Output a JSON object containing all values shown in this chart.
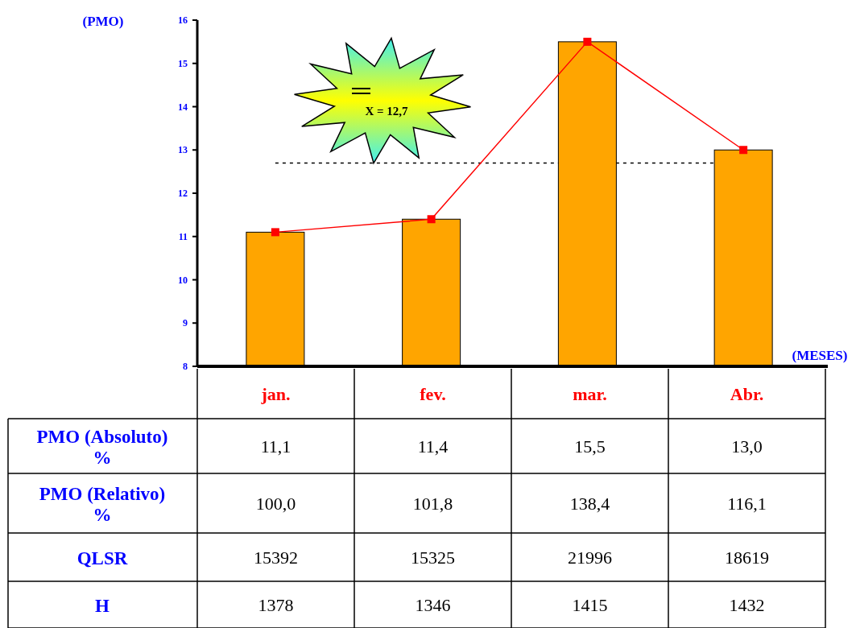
{
  "chart_data": {
    "type": "bar",
    "ylabel": "(PMO)",
    "xlabel": "(MESES)",
    "categories": [
      "jan.",
      "fev.",
      "mar.",
      "Abr."
    ],
    "ylim": [
      8,
      16
    ],
    "yticks": [
      8,
      9,
      10,
      11,
      12,
      13,
      14,
      15,
      16
    ],
    "series": [
      {
        "color": "#ffa500",
        "values": [
          11.1,
          11.4,
          15.5,
          13.0
        ],
        "value_labels": [
          "11,1",
          "11,4",
          "15,5",
          "13,0"
        ]
      },
      {
        "type": "line",
        "color": "#ff0000",
        "values": [
          11.1,
          11.4,
          15.5,
          13.0
        ],
        "marker": "square"
      }
    ],
    "ref_lines": [
      {
        "axis": "y",
        "value": 12.7,
        "color": "#000000",
        "line_style": "dashed"
      }
    ],
    "annotations": [
      "X = 12,7",
      "PMO (Absoluto) %",
      "PMO (Relativo) %",
      "100,0",
      "101,8",
      "138,4",
      "116,1",
      "QLSR",
      "15392",
      "15325",
      "21996",
      "18619",
      "H",
      "1378",
      "1346",
      "1415",
      "1432"
    ],
    "grid": false
  }
}
